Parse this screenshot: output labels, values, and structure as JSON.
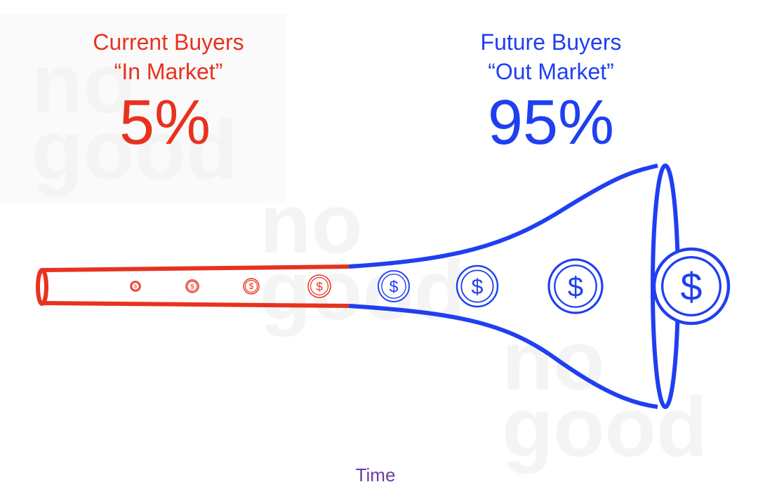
{
  "left": {
    "title": "Current Buyers",
    "subtitle": "“In Market”",
    "share": "5%"
  },
  "right": {
    "title": "Future Buyers",
    "subtitle": "“Out Market”",
    "share": "95%"
  },
  "coin_symbol": "$",
  "watermark": [
    "no",
    "good"
  ],
  "axis_label": "Time"
}
